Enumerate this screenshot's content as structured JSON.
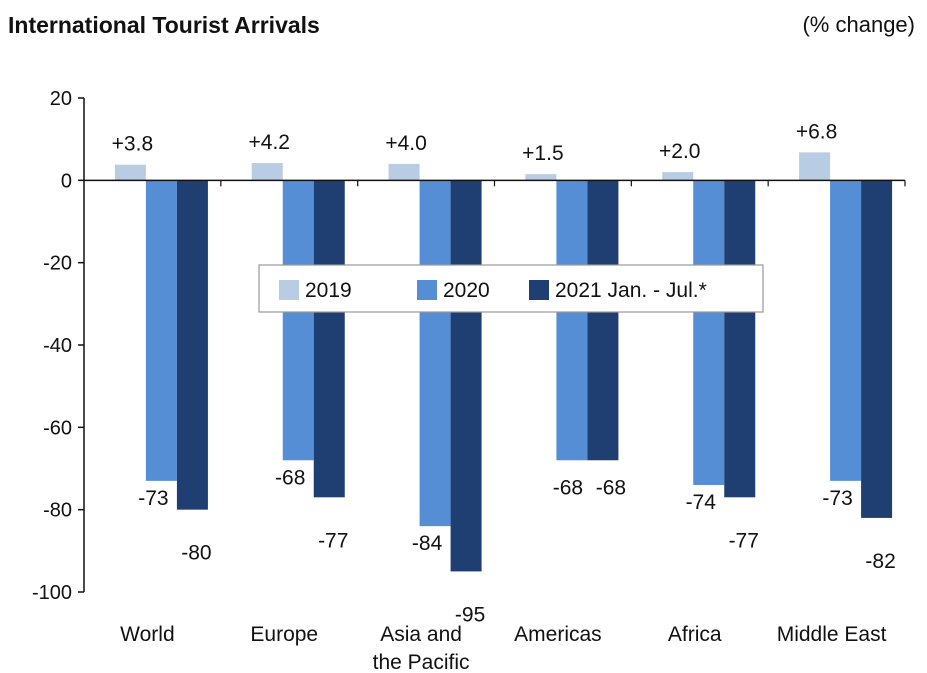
{
  "chart_data": {
    "type": "bar",
    "title": "International Tourist Arrivals",
    "unit": "(% change)",
    "categories": [
      [
        "World"
      ],
      [
        "Europe"
      ],
      [
        "Asia and",
        "the Pacific"
      ],
      [
        "Americas"
      ],
      [
        "Africa"
      ],
      [
        "Middle East"
      ]
    ],
    "series": [
      {
        "name": "2019",
        "color": "#b8cce4",
        "values": [
          3.8,
          4.2,
          4.0,
          1.5,
          2.0,
          6.8
        ],
        "labels": [
          "+3.8",
          "+4.2",
          "+4.0",
          "+1.5",
          "+2.0",
          "+6.8"
        ]
      },
      {
        "name": "2020",
        "color": "#558ed5",
        "values": [
          -73,
          -68,
          -84,
          -68,
          -74,
          -73
        ],
        "labels": [
          "-73",
          "-68",
          "-84",
          "-68",
          "-74",
          "-73"
        ]
      },
      {
        "name": "2021 Jan. - Jul.*",
        "color": "#1f3f73",
        "values": [
          -80,
          -77,
          -95,
          -68,
          -77,
          -82
        ],
        "labels": [
          "-80",
          "-77",
          "-95",
          "-68",
          "-77",
          "-82"
        ]
      }
    ],
    "ylim": [
      -100,
      20
    ],
    "yticks": [
      20,
      0,
      -20,
      -40,
      -60,
      -80,
      -100
    ],
    "legend_position": "center",
    "grid": false
  }
}
